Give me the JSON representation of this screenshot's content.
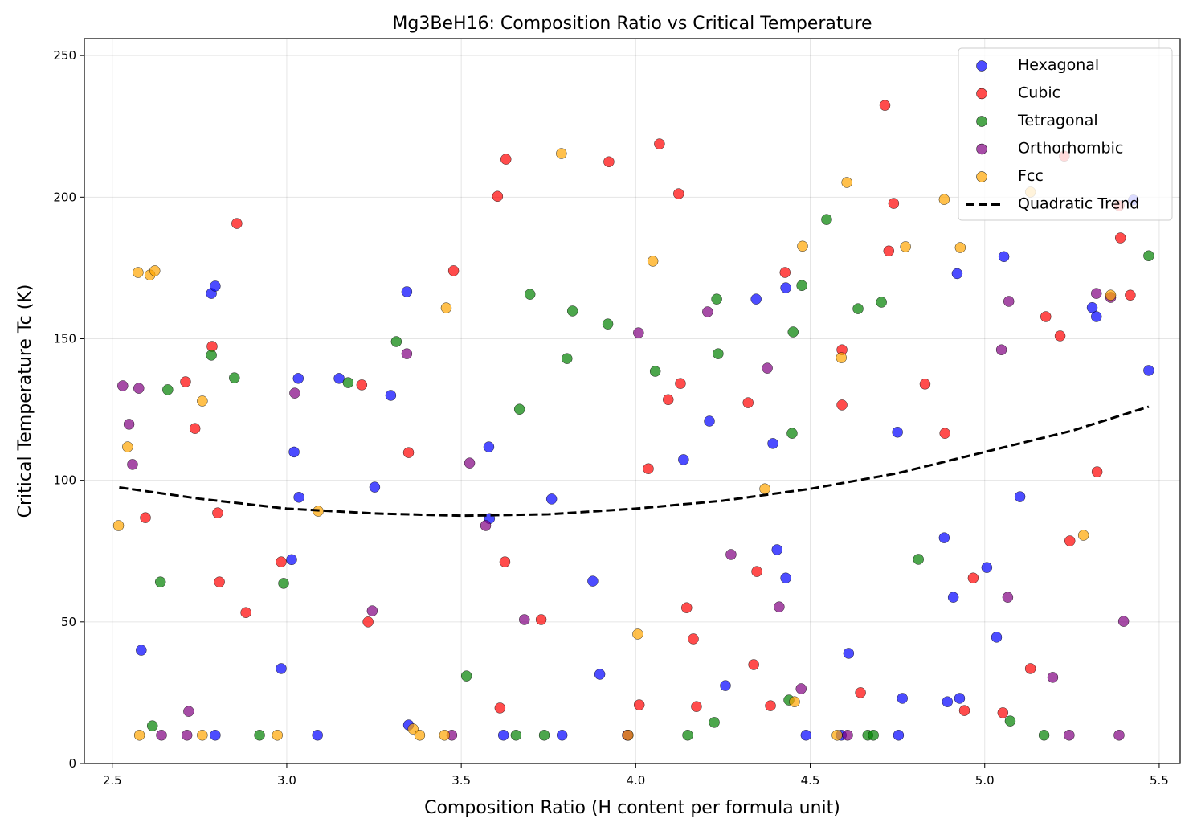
{
  "chart_data": {
    "type": "scatter",
    "title": "Mg3BeH16: Composition Ratio vs Critical Temperature",
    "xlabel": "Composition Ratio (H content per formula unit)",
    "ylabel": "Critical Temperature Tc (K)",
    "xlim": [
      2.42,
      5.56
    ],
    "ylim": [
      0,
      256
    ],
    "xticks": [
      "2.5",
      "3.0",
      "3.5",
      "4.0",
      "4.5",
      "5.0",
      "5.5"
    ],
    "yticks": [
      "0",
      "50",
      "100",
      "150",
      "200",
      "250"
    ],
    "grid": true,
    "legend_position": "top-right",
    "series": [
      {
        "name": "Hexagonal",
        "color": "#0000ff",
        "points": [
          [
            2.583,
            40
          ],
          [
            2.784,
            166
          ],
          [
            2.795,
            168.6
          ],
          [
            2.795,
            10
          ],
          [
            2.984,
            33.5
          ],
          [
            3.021,
            110
          ],
          [
            3.014,
            72
          ],
          [
            3.033,
            136
          ],
          [
            3.035,
            94
          ],
          [
            3.088,
            10
          ],
          [
            3.15,
            136
          ],
          [
            3.252,
            97.6
          ],
          [
            3.298,
            130
          ],
          [
            3.344,
            166.6
          ],
          [
            3.349,
            13.6
          ],
          [
            3.579,
            111.8
          ],
          [
            3.581,
            86.5
          ],
          [
            3.621,
            10
          ],
          [
            3.759,
            93.4
          ],
          [
            3.789,
            10
          ],
          [
            3.877,
            64.4
          ],
          [
            3.897,
            31.5
          ],
          [
            3.978,
            10
          ],
          [
            4.137,
            107.3
          ],
          [
            4.211,
            120.9
          ],
          [
            4.257,
            27.5
          ],
          [
            4.345,
            164
          ],
          [
            4.43,
            168
          ],
          [
            4.393,
            113
          ],
          [
            4.405,
            75.5
          ],
          [
            4.43,
            65.5
          ],
          [
            4.488,
            10
          ],
          [
            4.589,
            10
          ],
          [
            4.61,
            38.9
          ],
          [
            4.75,
            117
          ],
          [
            4.753,
            10
          ],
          [
            4.764,
            23
          ],
          [
            4.893,
            21.8
          ],
          [
            4.884,
            79.7
          ],
          [
            4.91,
            58.7
          ],
          [
            4.921,
            173
          ],
          [
            4.928,
            23
          ],
          [
            5.006,
            69.2
          ],
          [
            5.034,
            44.6
          ],
          [
            5.055,
            179
          ],
          [
            5.101,
            94.2
          ],
          [
            5.308,
            161
          ],
          [
            5.32,
            157.8
          ],
          [
            5.426,
            199
          ],
          [
            5.47,
            138.8
          ]
        ]
      },
      {
        "name": "Cubic",
        "color": "#ff0000",
        "points": [
          [
            2.595,
            86.8
          ],
          [
            2.71,
            134.8
          ],
          [
            2.737,
            118.3
          ],
          [
            2.786,
            147.3
          ],
          [
            2.802,
            88.5
          ],
          [
            2.807,
            64.1
          ],
          [
            2.857,
            190.7
          ],
          [
            2.883,
            53.3
          ],
          [
            2.984,
            71.2
          ],
          [
            3.215,
            133.7
          ],
          [
            3.233,
            50
          ],
          [
            3.349,
            109.8
          ],
          [
            3.478,
            174
          ],
          [
            3.611,
            19.6
          ],
          [
            3.604,
            200.3
          ],
          [
            3.628,
            213.4
          ],
          [
            3.625,
            71.2
          ],
          [
            3.729,
            50.8
          ],
          [
            3.923,
            212.5
          ],
          [
            4.01,
            20.7
          ],
          [
            4.036,
            104.1
          ],
          [
            4.068,
            218.8
          ],
          [
            4.093,
            128.5
          ],
          [
            4.123,
            201.2
          ],
          [
            4.128,
            134.2
          ],
          [
            4.146,
            55
          ],
          [
            4.165,
            44
          ],
          [
            4.174,
            20.1
          ],
          [
            4.322,
            127.4
          ],
          [
            4.338,
            34.9
          ],
          [
            4.347,
            67.8
          ],
          [
            4.386,
            20.4
          ],
          [
            4.428,
            173.4
          ],
          [
            4.591,
            146.1
          ],
          [
            4.591,
            126.6
          ],
          [
            4.644,
            25
          ],
          [
            4.714,
            232.4
          ],
          [
            4.725,
            181
          ],
          [
            4.739,
            197.8
          ],
          [
            4.829,
            134
          ],
          [
            4.886,
            116.6
          ],
          [
            4.942,
            18.7
          ],
          [
            4.967,
            65.5
          ],
          [
            5.052,
            17.9
          ],
          [
            5.131,
            33.5
          ],
          [
            5.175,
            157.8
          ],
          [
            5.216,
            151
          ],
          [
            5.244,
            78.6
          ],
          [
            5.228,
            214.5
          ],
          [
            5.322,
            103
          ],
          [
            5.389,
            185.6
          ],
          [
            5.417,
            165.4
          ],
          [
            5.385,
            197
          ]
        ]
      },
      {
        "name": "Tetragonal",
        "color": "#008000",
        "points": [
          [
            2.615,
            13.3
          ],
          [
            2.638,
            64.1
          ],
          [
            2.659,
            132
          ],
          [
            2.784,
            144.2
          ],
          [
            2.85,
            136.2
          ],
          [
            2.922,
            10
          ],
          [
            2.991,
            63.6
          ],
          [
            3.176,
            134.5
          ],
          [
            3.314,
            149
          ],
          [
            3.515,
            30.9
          ],
          [
            3.657,
            10
          ],
          [
            3.667,
            125.1
          ],
          [
            3.697,
            165.7
          ],
          [
            3.738,
            10
          ],
          [
            3.803,
            143
          ],
          [
            3.819,
            159.8
          ],
          [
            3.92,
            155.2
          ],
          [
            4.056,
            138.5
          ],
          [
            4.149,
            10
          ],
          [
            4.225,
            14.5
          ],
          [
            4.232,
            164
          ],
          [
            4.236,
            144.7
          ],
          [
            4.439,
            22.4
          ],
          [
            4.448,
            116.6
          ],
          [
            4.451,
            152.4
          ],
          [
            4.476,
            168.8
          ],
          [
            4.547,
            192.1
          ],
          [
            4.637,
            160.6
          ],
          [
            4.665,
            10
          ],
          [
            4.681,
            10
          ],
          [
            4.704,
            162.9
          ],
          [
            4.81,
            72.1
          ],
          [
            5.073,
            15
          ],
          [
            5.17,
            10
          ],
          [
            5.47,
            179.3
          ]
        ]
      },
      {
        "name": "Orthorhombic",
        "color": "#800080",
        "points": [
          [
            2.53,
            133.4
          ],
          [
            2.548,
            119.8
          ],
          [
            2.558,
            105.6
          ],
          [
            2.576,
            132.5
          ],
          [
            2.641,
            10
          ],
          [
            2.714,
            10
          ],
          [
            2.719,
            18.4
          ],
          [
            3.023,
            130.8
          ],
          [
            3.245,
            53.9
          ],
          [
            3.344,
            144.7
          ],
          [
            3.473,
            10
          ],
          [
            3.524,
            106.1
          ],
          [
            3.57,
            84
          ],
          [
            3.681,
            50.8
          ],
          [
            3.976,
            10
          ],
          [
            4.008,
            152.1
          ],
          [
            4.206,
            159.5
          ],
          [
            4.273,
            73.8
          ],
          [
            4.377,
            139.6
          ],
          [
            4.411,
            55.3
          ],
          [
            4.474,
            26.4
          ],
          [
            4.607,
            10
          ],
          [
            5.048,
            146.1
          ],
          [
            5.069,
            163.2
          ],
          [
            5.066,
            58.7
          ],
          [
            5.195,
            30.4
          ],
          [
            5.242,
            10
          ],
          [
            5.32,
            166
          ],
          [
            5.361,
            164.6
          ],
          [
            5.385,
            10
          ],
          [
            5.398,
            50.2
          ]
        ]
      },
      {
        "name": "Fcc",
        "color": "#ffa500",
        "points": [
          [
            2.518,
            84
          ],
          [
            2.544,
            111.8
          ],
          [
            2.574,
            173.4
          ],
          [
            2.578,
            10
          ],
          [
            2.608,
            172.5
          ],
          [
            2.622,
            174
          ],
          [
            2.758,
            128
          ],
          [
            2.758,
            10
          ],
          [
            2.973,
            10
          ],
          [
            3.09,
            89.1
          ],
          [
            3.362,
            12.2
          ],
          [
            3.381,
            10
          ],
          [
            3.452,
            10
          ],
          [
            3.457,
            160.9
          ],
          [
            3.787,
            215.4
          ],
          [
            3.978,
            10
          ],
          [
            4.006,
            45.7
          ],
          [
            4.049,
            177.4
          ],
          [
            4.37,
            97
          ],
          [
            4.455,
            21.8
          ],
          [
            4.478,
            182.7
          ],
          [
            4.577,
            10
          ],
          [
            4.589,
            143.3
          ],
          [
            4.605,
            205.2
          ],
          [
            4.773,
            182.5
          ],
          [
            4.884,
            199.2
          ],
          [
            4.93,
            182.2
          ],
          [
            5.131,
            201.8
          ],
          [
            5.283,
            80.6
          ],
          [
            5.361,
            165.4
          ]
        ]
      }
    ],
    "trend": {
      "name": "Quadratic Trend",
      "color": "#000000",
      "style": "dashed",
      "points": [
        [
          2.52,
          97.5
        ],
        [
          2.75,
          93.5
        ],
        [
          3.0,
          90
        ],
        [
          3.25,
          88.3
        ],
        [
          3.5,
          87.5
        ],
        [
          3.75,
          88
        ],
        [
          4.0,
          90
        ],
        [
          4.25,
          92.8
        ],
        [
          4.5,
          97
        ],
        [
          4.75,
          102.5
        ],
        [
          5.0,
          110
        ],
        [
          5.25,
          117.5
        ],
        [
          5.47,
          126
        ]
      ]
    }
  }
}
